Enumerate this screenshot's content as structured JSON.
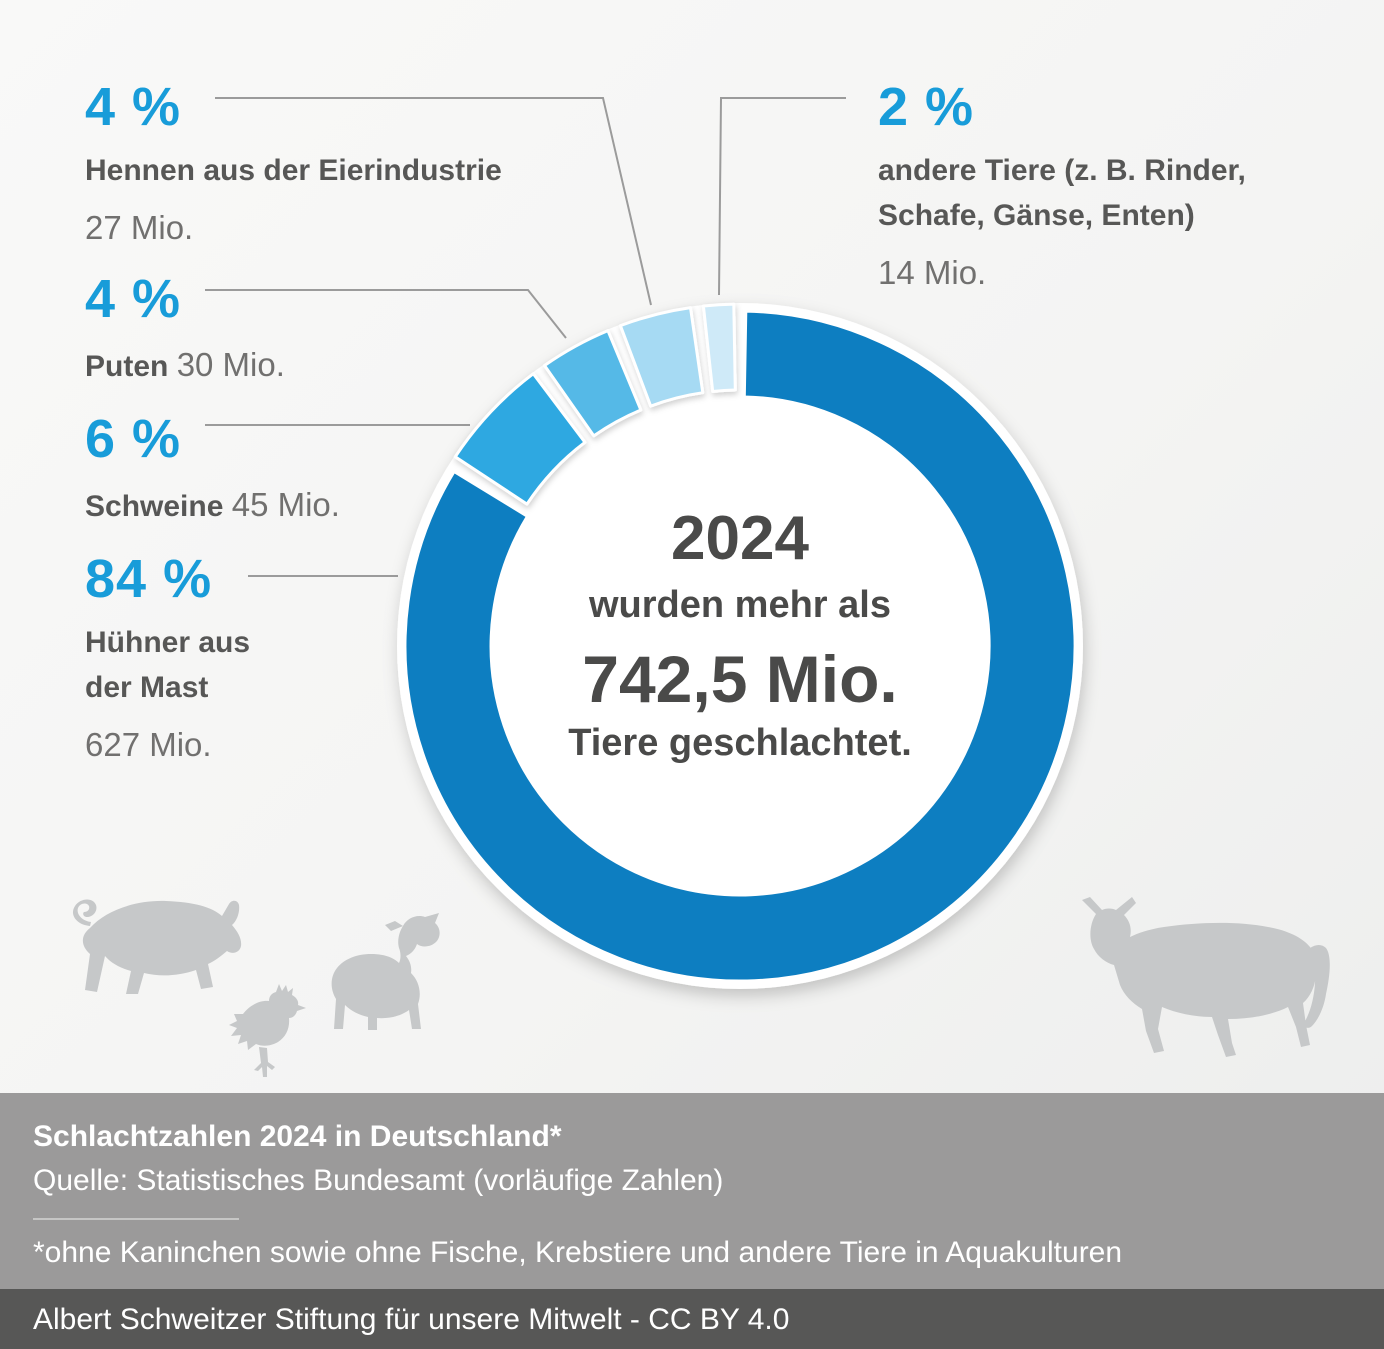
{
  "colors": {
    "accent_blue": "#189cd9",
    "dark_text": "#575756",
    "gray_text": "#71706f",
    "center_text": "#4a4a49",
    "leader_line": "#9b9b9b",
    "footer_band": "#9b9a9a",
    "credit_band": "#575756",
    "background": "#f4f4f3"
  },
  "chart_data": {
    "type": "pie",
    "subtype": "donut",
    "title": "Schlachtzahlen 2024 in Deutschland*",
    "unit": "Mio. Tiere",
    "total_value_mio": 742.5,
    "start_angle_deg": 0,
    "direction": "clockwise",
    "legend_position": "callouts",
    "segments": [
      {
        "name": "Hühner aus der Mast",
        "percent": 84,
        "value_mio": 627,
        "color": "#0d7ec1"
      },
      {
        "name": "Schweine",
        "percent": 6,
        "value_mio": 45,
        "color": "#2fa8e1"
      },
      {
        "name": "Puten",
        "percent": 4,
        "value_mio": 30,
        "color": "#55b9e7"
      },
      {
        "name": "Hennen aus der Eierindustrie",
        "percent": 4,
        "value_mio": 27,
        "color": "#a6daf3"
      },
      {
        "name": "andere Tiere (z. B. Rinder, Schafe, Gänse, Enten)",
        "percent": 2,
        "value_mio": 14,
        "color": "#cfeaf8"
      }
    ]
  },
  "center": {
    "line1": "2024",
    "line2": "wurden mehr als",
    "line3": "742,5 Mio.",
    "line4": "Tiere geschlachtet."
  },
  "callouts": {
    "hennen": {
      "percent": "4 %",
      "label": "Hennen aus der Eierindustrie",
      "value": "27 Mio."
    },
    "puten": {
      "percent": "4 %",
      "label": "Puten",
      "value": "30 Mio."
    },
    "schweine": {
      "percent": "6 %",
      "label": "Schweine",
      "value": "45 Mio."
    },
    "huehner": {
      "percent": "84 %",
      "label_line1": "Hühner aus",
      "label_line2": "der Mast",
      "value": "627 Mio."
    },
    "andere": {
      "percent": "2 %",
      "label_line1": "andere Tiere (z. B. Rinder,",
      "label_line2": "Schafe, Gänse, Enten)",
      "value": "14 Mio."
    }
  },
  "footer": {
    "title": "Schlachtzahlen 2024 in Deutschland*",
    "source": "Quelle: Statistisches Bundesamt (vorläufige Zahlen)",
    "note": "*ohne Kaninchen sowie ohne Fische, Krebstiere und andere Tiere in Aquakulturen",
    "credit": "Albert Schweitzer Stiftung für unsere Mitwelt - CC BY 4.0"
  }
}
